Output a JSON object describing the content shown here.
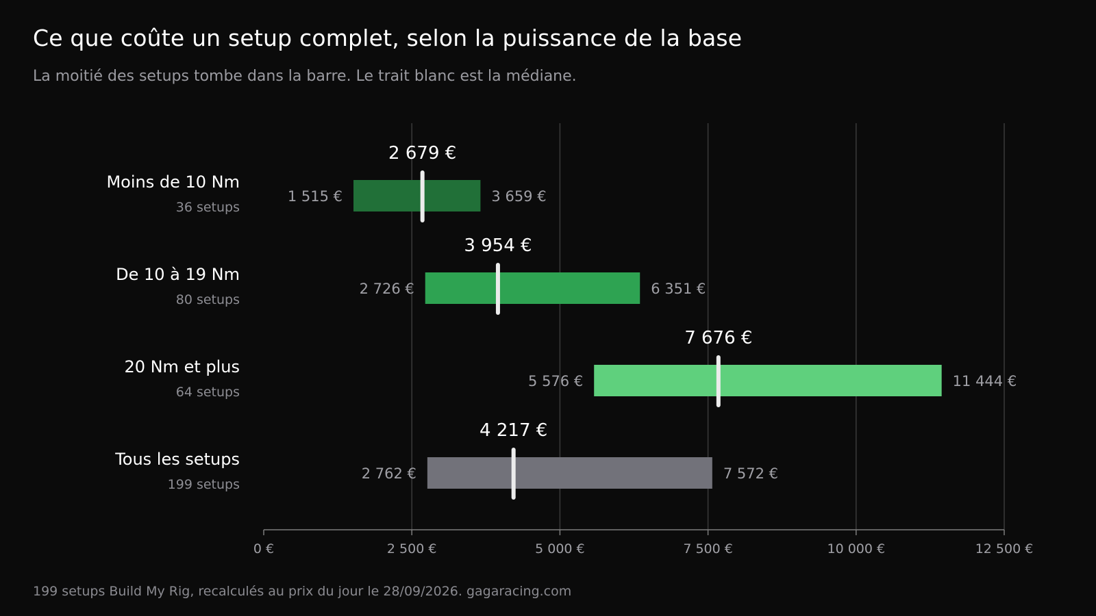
{
  "chart_data": {
    "type": "bar",
    "title": "Ce que coûte un setup complet, selon la puissance de la base",
    "subtitle": "La moitié des setups tombe dans la barre. Le trait blanc est la médiane.",
    "source": "199 setups Build My Rig, recalculés au prix du jour le 28/09/2026. gagaracing.com",
    "xlim": [
      0,
      12500
    ],
    "x_ticks": [
      0,
      2500,
      5000,
      7500,
      10000,
      12500
    ],
    "x_tick_labels": [
      "0 €",
      "2 500 €",
      "5 000 €",
      "7 500 €",
      "10 000 €",
      "12 500 €"
    ],
    "grid": true,
    "categories": [
      {
        "name": "Moins de 10 Nm",
        "count_label": "36 setups",
        "q1": 1515,
        "median": 2679,
        "q3": 3659,
        "q1_label": "1 515 €",
        "median_label": "2 679 €",
        "q3_label": "3 659 €",
        "color": "#217038"
      },
      {
        "name": "De 10 à 19 Nm",
        "count_label": "80 setups",
        "q1": 2726,
        "median": 3954,
        "q3": 6351,
        "q1_label": "2 726 €",
        "median_label": "3 954 €",
        "q3_label": "6 351 €",
        "color": "#2ea352"
      },
      {
        "name": "20 Nm et plus",
        "count_label": "64 setups",
        "q1": 5576,
        "median": 7676,
        "q3": 11444,
        "q1_label": "5 576 €",
        "median_label": "7 676 €",
        "q3_label": "11 444 €",
        "color": "#5fd07d"
      },
      {
        "name": "Tous les setups",
        "count_label": "199 setups",
        "q1": 2762,
        "median": 4217,
        "q3": 7572,
        "q1_label": "2 762 €",
        "median_label": "4 217 €",
        "q3_label": "7 572 €",
        "color": "#72727a"
      }
    ],
    "median_marker_color": "#ececec",
    "grid_color": "#3a3a3a",
    "axis_color": "#7d7d7d"
  }
}
